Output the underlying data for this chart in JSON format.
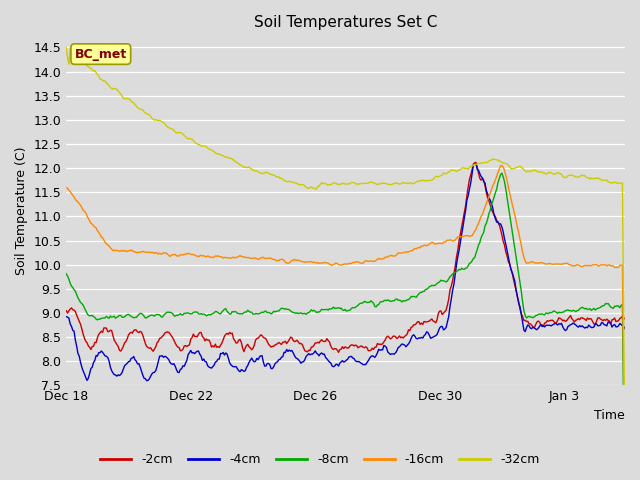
{
  "title": "Soil Temperatures Set C",
  "xlabel": "Time",
  "ylabel": "Soil Temperature (C)",
  "ylim": [
    7.5,
    14.75
  ],
  "yticks": [
    7.5,
    8.0,
    8.5,
    9.0,
    9.5,
    10.0,
    10.5,
    11.0,
    11.5,
    12.0,
    12.5,
    13.0,
    13.5,
    14.0,
    14.5
  ],
  "bg_color": "#dcdcdc",
  "plot_bg_color": "#dcdcdc",
  "grid_color": "#ffffff",
  "legend_label": "BC_met",
  "legend_box_facecolor": "#ffff99",
  "legend_box_edgecolor": "#999900",
  "legend_text_color": "#800000",
  "series_colors": {
    "-2cm": "#cc0000",
    "-4cm": "#0000cc",
    "-8cm": "#00aa00",
    "-16cm": "#ff8800",
    "-32cm": "#cccc00"
  },
  "n_points": 432,
  "xtick_labels": [
    "Dec 18",
    "Dec 22",
    "Dec 26",
    "Dec 30",
    "Jan 3"
  ],
  "xtick_positions": [
    0,
    96,
    192,
    288,
    384
  ],
  "figsize": [
    6.4,
    4.8
  ],
  "dpi": 100
}
